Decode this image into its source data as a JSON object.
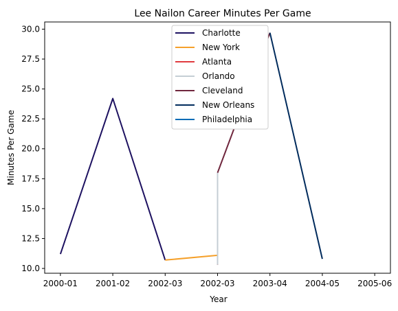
{
  "chart_data": {
    "type": "line",
    "title": "Lee Nailon Career Minutes Per Game",
    "xlabel": "Year",
    "ylabel": "Minutes Per Game",
    "x_categories": [
      "2000-01",
      "2001-02",
      "2002-03",
      "2002-03",
      "2003-04",
      "2004-05",
      "2005-06"
    ],
    "x_range": [
      -0.3,
      6.3
    ],
    "ylim": [
      9.6,
      30.6
    ],
    "y_ticks": [
      10.0,
      12.5,
      15.0,
      17.5,
      20.0,
      22.5,
      25.0,
      27.5,
      30.0
    ],
    "grid": false,
    "legend_position": "top-center",
    "series": [
      {
        "name": "Charlotte",
        "color": "#1d1160",
        "points": [
          [
            0,
            11.2
          ],
          [
            1,
            24.2
          ],
          [
            2,
            10.7
          ]
        ]
      },
      {
        "name": "New York",
        "color": "#f5a02a",
        "points": [
          [
            2,
            10.7
          ],
          [
            3,
            11.1
          ]
        ]
      },
      {
        "name": "Atlanta",
        "color": "#e03a3e",
        "points": [
          [
            3,
            10.3
          ],
          [
            3,
            10.4
          ]
        ]
      },
      {
        "name": "Orlando",
        "color": "#c4ced4",
        "points": [
          [
            3,
            10.3
          ],
          [
            3,
            18.0
          ]
        ]
      },
      {
        "name": "Cleveland",
        "color": "#6f263d",
        "points": [
          [
            3,
            18.0
          ],
          [
            4,
            29.7
          ]
        ]
      },
      {
        "name": "New Orleans",
        "color": "#002b5c",
        "points": [
          [
            4,
            29.7
          ],
          [
            5,
            10.8
          ]
        ]
      },
      {
        "name": "Philadelphia",
        "color": "#006bb6",
        "points": []
      }
    ]
  }
}
